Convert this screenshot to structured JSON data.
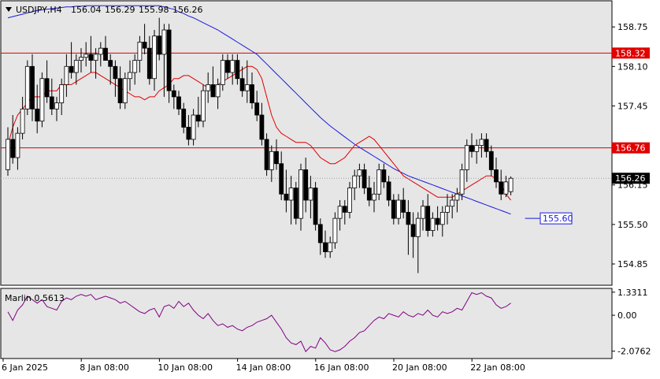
{
  "header": {
    "symbol": "USDJPY,H4",
    "open": "156.04",
    "high": "156.29",
    "low": "155.98",
    "close": "156.26"
  },
  "indicator": {
    "label": "Marlin 0.5613"
  },
  "colors": {
    "background": "#e6e6e6",
    "bull_body": "#ffffff",
    "bear_body": "#000000",
    "ma_fast": "#e00000",
    "ma_slow": "#1a1ae0",
    "level_line": "#e00000",
    "osc": "#800080",
    "level_tag": "#e00000",
    "target_tag": "#1a1ae0"
  },
  "chart_data": [
    {
      "type": "candlestick",
      "title": "USDJPY,H4",
      "ylim": [
        154.5,
        159.18
      ],
      "y_ticks": [
        "158.75",
        "158.10",
        "157.45",
        "156.15",
        "155.50",
        "154.85"
      ],
      "x_ticks": [
        "6 Jan 2025",
        "8 Jan 08:00",
        "10 Jan 08:00",
        "14 Jan 08:00",
        "16 Jan 08:00",
        "20 Jan 08:00",
        "22 Jan 08:00"
      ],
      "x_tick_index": [
        0,
        16,
        32,
        48,
        64,
        80,
        96
      ],
      "levels": [
        {
          "price": 158.32,
          "label": "158.32"
        },
        {
          "price": 156.76,
          "label": "156.76"
        }
      ],
      "current_price": {
        "price": 156.26,
        "label": "156.26"
      },
      "target": {
        "price": 155.6,
        "label": "155.60"
      },
      "candles": [
        [
          156.4,
          157.1,
          156.3,
          156.9
        ],
        [
          156.9,
          157.3,
          156.5,
          156.6
        ],
        [
          156.6,
          157.1,
          156.4,
          157.0
        ],
        [
          157.0,
          157.6,
          156.9,
          157.4
        ],
        [
          157.4,
          158.2,
          157.3,
          158.1
        ],
        [
          158.1,
          158.3,
          157.2,
          157.4
        ],
        [
          157.4,
          157.8,
          157.0,
          157.2
        ],
        [
          157.2,
          158.0,
          157.1,
          157.9
        ],
        [
          157.9,
          158.2,
          157.5,
          157.6
        ],
        [
          157.6,
          157.9,
          157.3,
          157.4
        ],
        [
          157.4,
          157.6,
          157.2,
          157.5
        ],
        [
          157.5,
          157.9,
          157.3,
          157.8
        ],
        [
          157.8,
          158.3,
          157.6,
          158.1
        ],
        [
          158.1,
          158.5,
          157.9,
          158.0
        ],
        [
          158.0,
          158.3,
          157.8,
          158.2
        ],
        [
          158.2,
          158.4,
          158.0,
          158.25
        ],
        [
          158.25,
          158.5,
          158.1,
          158.3
        ],
        [
          158.3,
          158.6,
          158.0,
          158.2
        ],
        [
          158.2,
          158.4,
          157.9,
          158.3
        ],
        [
          158.3,
          158.5,
          158.1,
          158.4
        ],
        [
          158.4,
          158.6,
          158.2,
          158.2
        ],
        [
          158.2,
          158.3,
          157.8,
          158.1
        ],
        [
          158.1,
          158.2,
          157.6,
          157.9
        ],
        [
          157.9,
          158.1,
          157.4,
          157.5
        ],
        [
          157.5,
          158.0,
          157.4,
          157.9
        ],
        [
          157.9,
          158.2,
          157.7,
          158.0
        ],
        [
          158.0,
          158.3,
          157.8,
          158.2
        ],
        [
          158.2,
          158.6,
          158.0,
          158.5
        ],
        [
          158.5,
          158.8,
          158.3,
          158.4
        ],
        [
          158.4,
          158.6,
          157.8,
          157.9
        ],
        [
          157.9,
          158.7,
          157.7,
          158.6
        ],
        [
          158.6,
          158.9,
          158.2,
          158.3
        ],
        [
          158.3,
          158.8,
          157.6,
          158.7
        ],
        [
          158.7,
          158.8,
          157.5,
          157.7
        ],
        [
          157.7,
          157.8,
          157.4,
          157.6
        ],
        [
          157.6,
          157.7,
          157.3,
          157.4
        ],
        [
          157.4,
          157.5,
          157.0,
          157.1
        ],
        [
          157.1,
          157.3,
          156.8,
          156.9
        ],
        [
          156.9,
          157.4,
          156.8,
          157.3
        ],
        [
          157.3,
          157.6,
          157.1,
          157.2
        ],
        [
          157.2,
          157.8,
          157.1,
          157.7
        ],
        [
          157.7,
          158.0,
          157.5,
          157.8
        ],
        [
          157.8,
          158.1,
          157.6,
          157.6
        ],
        [
          157.6,
          157.9,
          157.4,
          157.8
        ],
        [
          157.8,
          158.3,
          157.7,
          158.2
        ],
        [
          158.2,
          158.3,
          157.9,
          158.0
        ],
        [
          158.0,
          158.3,
          157.8,
          158.2
        ],
        [
          158.2,
          158.3,
          157.8,
          157.9
        ],
        [
          157.9,
          158.1,
          157.6,
          157.7
        ],
        [
          157.7,
          158.2,
          157.5,
          157.8
        ],
        [
          157.8,
          158.0,
          157.4,
          157.5
        ],
        [
          157.5,
          157.7,
          157.2,
          157.3
        ],
        [
          157.3,
          157.5,
          156.8,
          156.9
        ],
        [
          156.9,
          157.0,
          156.3,
          156.4
        ],
        [
          156.4,
          156.8,
          156.2,
          156.7
        ],
        [
          156.7,
          156.9,
          156.4,
          156.5
        ],
        [
          156.5,
          156.7,
          155.9,
          156.0
        ],
        [
          156.0,
          156.4,
          155.7,
          155.9
        ],
        [
          155.9,
          156.3,
          155.5,
          156.1
        ],
        [
          156.1,
          156.2,
          155.5,
          155.6
        ],
        [
          155.6,
          156.5,
          155.4,
          156.4
        ],
        [
          156.4,
          156.6,
          155.7,
          155.9
        ],
        [
          155.9,
          156.3,
          155.6,
          156.1
        ],
        [
          156.1,
          156.2,
          155.4,
          155.5
        ],
        [
          155.5,
          155.6,
          155.0,
          155.2
        ],
        [
          155.2,
          155.4,
          154.95,
          155.05
        ],
        [
          155.05,
          155.3,
          154.95,
          155.2
        ],
        [
          155.2,
          155.7,
          155.1,
          155.6
        ],
        [
          155.6,
          155.9,
          155.4,
          155.8
        ],
        [
          155.8,
          155.9,
          155.5,
          155.7
        ],
        [
          155.7,
          156.2,
          155.6,
          156.1
        ],
        [
          156.1,
          156.4,
          155.9,
          156.3
        ],
        [
          156.3,
          156.5,
          156.1,
          156.4
        ],
        [
          156.4,
          156.5,
          156.0,
          156.1
        ],
        [
          156.1,
          156.3,
          155.8,
          155.9
        ],
        [
          155.9,
          156.2,
          155.7,
          156.0
        ],
        [
          156.0,
          156.5,
          155.9,
          156.4
        ],
        [
          156.4,
          156.5,
          156.1,
          156.2
        ],
        [
          156.2,
          156.3,
          155.8,
          155.9
        ],
        [
          155.9,
          156.0,
          155.5,
          155.6
        ],
        [
          155.6,
          156.0,
          155.5,
          155.9
        ],
        [
          155.9,
          156.1,
          155.6,
          155.7
        ],
        [
          155.7,
          155.9,
          155.0,
          155.5
        ],
        [
          155.5,
          155.7,
          154.95,
          155.3
        ],
        [
          155.3,
          155.7,
          154.7,
          155.6
        ],
        [
          155.6,
          155.9,
          155.4,
          155.8
        ],
        [
          155.8,
          156.0,
          155.3,
          155.4
        ],
        [
          155.4,
          155.7,
          155.3,
          155.6
        ],
        [
          155.6,
          155.8,
          155.4,
          155.5
        ],
        [
          155.5,
          155.8,
          155.3,
          155.7
        ],
        [
          155.7,
          156.0,
          155.5,
          155.8
        ],
        [
          155.8,
          156.0,
          155.6,
          155.9
        ],
        [
          155.9,
          156.1,
          155.7,
          156.0
        ],
        [
          156.0,
          156.5,
          155.9,
          156.4
        ],
        [
          156.4,
          156.9,
          156.2,
          156.8
        ],
        [
          156.8,
          157.0,
          156.6,
          156.7
        ],
        [
          156.7,
          156.9,
          156.5,
          156.8
        ],
        [
          156.8,
          157.0,
          156.6,
          156.9
        ],
        [
          156.9,
          157.0,
          156.6,
          156.7
        ],
        [
          156.7,
          156.8,
          156.3,
          156.4
        ],
        [
          156.4,
          156.6,
          156.1,
          156.2
        ],
        [
          156.2,
          156.4,
          155.9,
          156.0
        ],
        [
          156.0,
          156.3,
          155.95,
          156.2
        ],
        [
          156.04,
          156.29,
          155.98,
          156.26
        ]
      ],
      "ma_fast": [
        156.8,
        157.1,
        157.3,
        157.4,
        157.5,
        157.6,
        157.6,
        157.6,
        157.7,
        157.7,
        157.7,
        157.8,
        157.8,
        157.8,
        157.85,
        157.9,
        157.95,
        158.0,
        158.0,
        157.95,
        157.9,
        157.85,
        157.8,
        157.75,
        157.7,
        157.65,
        157.6,
        157.6,
        157.55,
        157.6,
        157.6,
        157.7,
        157.75,
        157.8,
        157.9,
        157.9,
        157.95,
        157.95,
        157.9,
        157.85,
        157.8,
        157.75,
        157.75,
        157.8,
        157.85,
        157.9,
        157.95,
        158.0,
        158.05,
        158.1,
        158.1,
        158.05,
        157.9,
        157.6,
        157.3,
        157.1,
        157.0,
        156.95,
        156.9,
        156.85,
        156.85,
        156.85,
        156.8,
        156.7,
        156.6,
        156.55,
        156.5,
        156.5,
        156.55,
        156.6,
        156.7,
        156.8,
        156.85,
        156.9,
        156.95,
        156.9,
        156.8,
        156.7,
        156.6,
        156.5,
        156.4,
        156.3,
        156.25,
        156.2,
        156.15,
        156.1,
        156.05,
        156.0,
        155.95,
        155.95,
        155.95,
        155.95,
        156.0,
        156.05,
        156.1,
        156.15,
        156.2,
        156.25,
        156.3,
        156.3,
        156.25,
        156.15,
        156.0,
        155.9
      ],
      "ma_slow": [
        158.9,
        158.92,
        158.94,
        158.96,
        158.98,
        159.0,
        159.02,
        159.03,
        159.04,
        159.05,
        159.06,
        159.07,
        159.08,
        159.08,
        159.09,
        159.09,
        159.1,
        159.1,
        159.1,
        159.1,
        159.1,
        159.1,
        159.1,
        159.1,
        159.1,
        159.1,
        159.1,
        159.1,
        159.1,
        159.1,
        159.1,
        159.1,
        159.08,
        159.06,
        159.04,
        159.0,
        158.97,
        158.93,
        158.9,
        158.86,
        158.82,
        158.78,
        158.74,
        158.7,
        158.65,
        158.6,
        158.55,
        158.5,
        158.45,
        158.4,
        158.35,
        158.3,
        158.22,
        158.14,
        158.06,
        157.98,
        157.9,
        157.82,
        157.74,
        157.66,
        157.58,
        157.5,
        157.42,
        157.34,
        157.26,
        157.19,
        157.12,
        157.06,
        157.0,
        156.94,
        156.88,
        156.82,
        156.77,
        156.72,
        156.67,
        156.62,
        156.57,
        156.52,
        156.47,
        156.42,
        156.38,
        156.34,
        156.3,
        156.27,
        156.24,
        156.21,
        156.18,
        156.15,
        156.12,
        156.09,
        156.06,
        156.03,
        156.0,
        155.97,
        155.94,
        155.91,
        155.88,
        155.85,
        155.82,
        155.79,
        155.76,
        155.73,
        155.7,
        155.67
      ]
    },
    {
      "type": "line",
      "title": "Marlin 0.5613",
      "ylim": [
        -2.5,
        1.55
      ],
      "y_ticks": [
        "1.3311",
        "0.00",
        "-2.0762"
      ],
      "series": [
        {
          "values": [
            0.2,
            -0.3,
            0.3,
            0.6,
            1.1,
            0.9,
            0.7,
            0.9,
            0.5,
            0.4,
            0.3,
            0.8,
            1.0,
            0.9,
            1.1,
            1.2,
            1.1,
            1.2,
            0.9,
            1.0,
            1.1,
            1.0,
            0.9,
            0.7,
            0.8,
            0.6,
            0.4,
            0.2,
            0.1,
            0.3,
            0.4,
            -0.1,
            0.5,
            0.6,
            0.4,
            0.8,
            0.5,
            0.7,
            0.3,
            0.0,
            -0.2,
            0.1,
            -0.3,
            -0.6,
            -0.5,
            -0.7,
            -0.6,
            -0.8,
            -0.9,
            -0.7,
            -0.6,
            -0.4,
            -0.3,
            -0.2,
            0.0,
            -0.4,
            -0.8,
            -1.3,
            -1.6,
            -1.7,
            -1.5,
            -2.1,
            -1.8,
            -1.9,
            -1.3,
            -1.6,
            -2.0,
            -2.1,
            -2.0,
            -1.8,
            -1.5,
            -1.3,
            -1.0,
            -0.9,
            -0.6,
            -0.3,
            -0.1,
            -0.2,
            0.1,
            0.0,
            -0.1,
            0.2,
            0.0,
            -0.1,
            0.1,
            0.0,
            0.3,
            0.0,
            -0.1,
            0.2,
            0.1,
            0.2,
            0.4,
            0.3,
            0.8,
            1.3,
            1.2,
            1.3,
            1.1,
            1.0,
            0.6,
            0.4,
            0.5,
            0.7
          ]
        }
      ]
    }
  ]
}
